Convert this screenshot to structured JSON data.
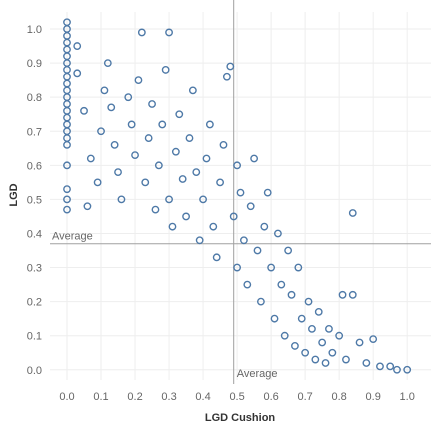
{
  "chart_data": {
    "type": "scatter",
    "xlabel": "LGD Cushion",
    "ylabel": "LGD",
    "xlim": [
      -0.05,
      1.07
    ],
    "ylim": [
      -0.03,
      1.05
    ],
    "x_ticks": [
      "0.0",
      "0.1",
      "0.2",
      "0.3",
      "0.4",
      "0.5",
      "0.6",
      "0.7",
      "0.8",
      "0.9",
      "1.0"
    ],
    "y_ticks": [
      "0.0",
      "0.1",
      "0.2",
      "0.3",
      "0.4",
      "0.5",
      "0.6",
      "0.7",
      "0.8",
      "0.9",
      "1.0"
    ],
    "grid": true,
    "marker_color": "#4e79a7",
    "reference_lines": [
      {
        "axis": "x",
        "value": 0.49,
        "label": "Average"
      },
      {
        "axis": "y",
        "value": 0.37,
        "label": "Average"
      }
    ],
    "series": [
      {
        "points": [
          [
            0.0,
            1.02
          ],
          [
            0.0,
            1.0
          ],
          [
            0.0,
            0.98
          ],
          [
            0.0,
            0.96
          ],
          [
            0.0,
            0.94
          ],
          [
            0.0,
            0.92
          ],
          [
            0.0,
            0.9
          ],
          [
            0.0,
            0.88
          ],
          [
            0.0,
            0.86
          ],
          [
            0.0,
            0.84
          ],
          [
            0.0,
            0.82
          ],
          [
            0.0,
            0.8
          ],
          [
            0.0,
            0.78
          ],
          [
            0.0,
            0.76
          ],
          [
            0.0,
            0.74
          ],
          [
            0.0,
            0.72
          ],
          [
            0.0,
            0.7
          ],
          [
            0.0,
            0.68
          ],
          [
            0.0,
            0.66
          ],
          [
            0.0,
            0.6
          ],
          [
            0.0,
            0.53
          ],
          [
            0.0,
            0.5
          ],
          [
            0.0,
            0.47
          ],
          [
            0.03,
            0.95
          ],
          [
            0.03,
            0.87
          ],
          [
            0.05,
            0.76
          ],
          [
            0.07,
            0.62
          ],
          [
            0.06,
            0.48
          ],
          [
            0.09,
            0.55
          ],
          [
            0.1,
            0.7
          ],
          [
            0.11,
            0.82
          ],
          [
            0.12,
            0.9
          ],
          [
            0.14,
            0.66
          ],
          [
            0.15,
            0.58
          ],
          [
            0.16,
            0.5
          ],
          [
            0.13,
            0.77
          ],
          [
            0.18,
            0.8
          ],
          [
            0.19,
            0.72
          ],
          [
            0.2,
            0.63
          ],
          [
            0.21,
            0.85
          ],
          [
            0.22,
            0.99
          ],
          [
            0.23,
            0.55
          ],
          [
            0.24,
            0.68
          ],
          [
            0.25,
            0.78
          ],
          [
            0.26,
            0.47
          ],
          [
            0.27,
            0.6
          ],
          [
            0.28,
            0.72
          ],
          [
            0.29,
            0.88
          ],
          [
            0.3,
            0.99
          ],
          [
            0.3,
            0.5
          ],
          [
            0.31,
            0.42
          ],
          [
            0.32,
            0.64
          ],
          [
            0.33,
            0.75
          ],
          [
            0.34,
            0.56
          ],
          [
            0.35,
            0.45
          ],
          [
            0.36,
            0.68
          ],
          [
            0.37,
            0.82
          ],
          [
            0.38,
            0.58
          ],
          [
            0.39,
            0.38
          ],
          [
            0.4,
            0.5
          ],
          [
            0.41,
            0.62
          ],
          [
            0.42,
            0.72
          ],
          [
            0.43,
            0.42
          ],
          [
            0.44,
            0.33
          ],
          [
            0.45,
            0.55
          ],
          [
            0.46,
            0.66
          ],
          [
            0.47,
            0.86
          ],
          [
            0.48,
            0.89
          ],
          [
            0.49,
            0.45
          ],
          [
            0.5,
            0.3
          ],
          [
            0.5,
            0.6
          ],
          [
            0.51,
            0.52
          ],
          [
            0.52,
            0.38
          ],
          [
            0.53,
            0.25
          ],
          [
            0.54,
            0.48
          ],
          [
            0.55,
            0.62
          ],
          [
            0.56,
            0.35
          ],
          [
            0.57,
            0.2
          ],
          [
            0.58,
            0.42
          ],
          [
            0.59,
            0.52
          ],
          [
            0.6,
            0.3
          ],
          [
            0.61,
            0.15
          ],
          [
            0.62,
            0.4
          ],
          [
            0.63,
            0.25
          ],
          [
            0.64,
            0.1
          ],
          [
            0.65,
            0.35
          ],
          [
            0.66,
            0.22
          ],
          [
            0.67,
            0.07
          ],
          [
            0.68,
            0.3
          ],
          [
            0.69,
            0.15
          ],
          [
            0.7,
            0.05
          ],
          [
            0.71,
            0.2
          ],
          [
            0.72,
            0.12
          ],
          [
            0.73,
            0.03
          ],
          [
            0.74,
            0.17
          ],
          [
            0.75,
            0.08
          ],
          [
            0.76,
            0.02
          ],
          [
            0.77,
            0.12
          ],
          [
            0.78,
            0.05
          ],
          [
            0.8,
            0.1
          ],
          [
            0.81,
            0.22
          ],
          [
            0.82,
            0.03
          ],
          [
            0.84,
            0.46
          ],
          [
            0.84,
            0.22
          ],
          [
            0.86,
            0.08
          ],
          [
            0.88,
            0.02
          ],
          [
            0.9,
            0.09
          ],
          [
            0.92,
            0.01
          ],
          [
            0.95,
            0.01
          ],
          [
            0.97,
            0.0
          ],
          [
            1.0,
            0.0
          ]
        ]
      }
    ]
  }
}
